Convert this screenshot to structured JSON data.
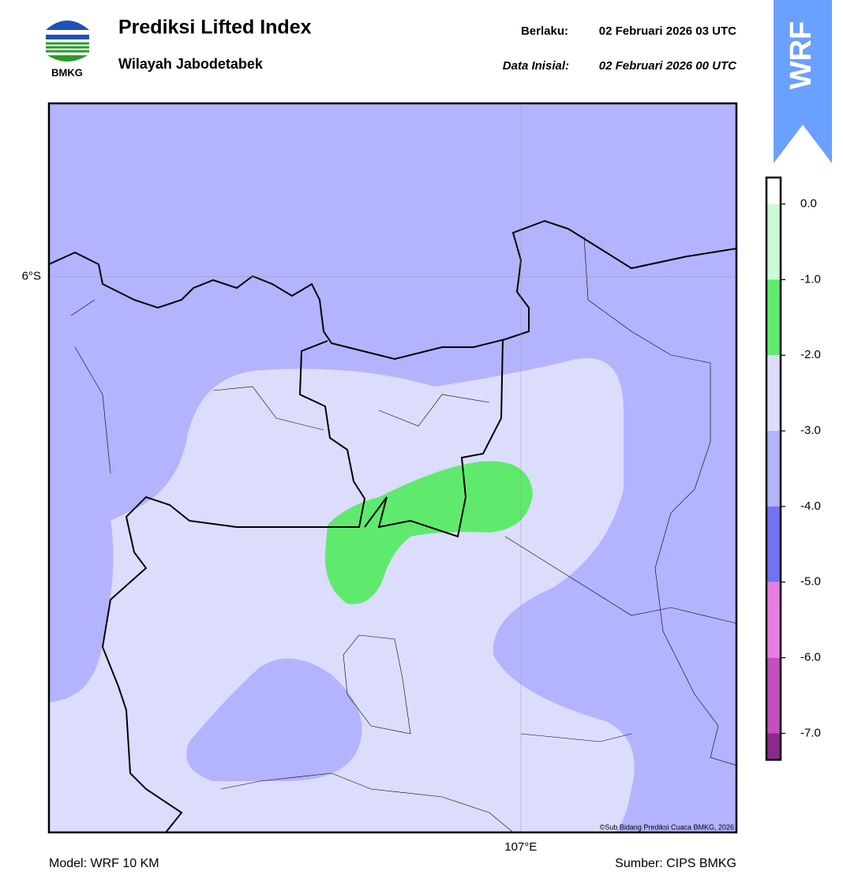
{
  "header": {
    "logo_text": "BMKG",
    "title": "Prediksi Lifted Index",
    "subtitle": "Wilayah Jabodetabek",
    "valid_label": "Berlaku:",
    "valid_time": "02 Februari 2026 03 UTC",
    "init_label": "Data Inisial:",
    "init_time": "02 Februari 2026 00 UTC",
    "badge": "WRF"
  },
  "map": {
    "xlim": [
      106.0,
      107.457
    ],
    "ylim": [
      -7.22,
      -5.62
    ],
    "lat_ticks": [
      {
        "value": -6,
        "label": "6°S"
      }
    ],
    "lon_ticks": [
      {
        "value": 107,
        "label": "107°E"
      }
    ],
    "copyright": "©Sub Bidang Prediksi Cuaca BMKG, 2026"
  },
  "colorbar": {
    "clim": [
      -7.35,
      0.35
    ],
    "ticks": [
      {
        "value": 0,
        "label": "0.0"
      },
      {
        "value": -1,
        "label": "-1.0"
      },
      {
        "value": -2,
        "label": "-2.0"
      },
      {
        "value": -3,
        "label": "-3.0"
      },
      {
        "value": -4,
        "label": "-4.0"
      },
      {
        "value": -5,
        "label": "-5.0"
      },
      {
        "value": -6,
        "label": "-6.0"
      },
      {
        "value": -7,
        "label": "-7.0"
      }
    ],
    "colors": [
      "#ffffff",
      "#c8fcd6",
      "#5fea6e",
      "#dcdcfd",
      "#b3b3ff",
      "#7272f4",
      "#e67fe0",
      "#c24fbe",
      "#8a2a8a"
    ]
  },
  "footer": {
    "model": "Model: WRF 10 KM",
    "source": "Sumber: CIPS BMKG"
  }
}
